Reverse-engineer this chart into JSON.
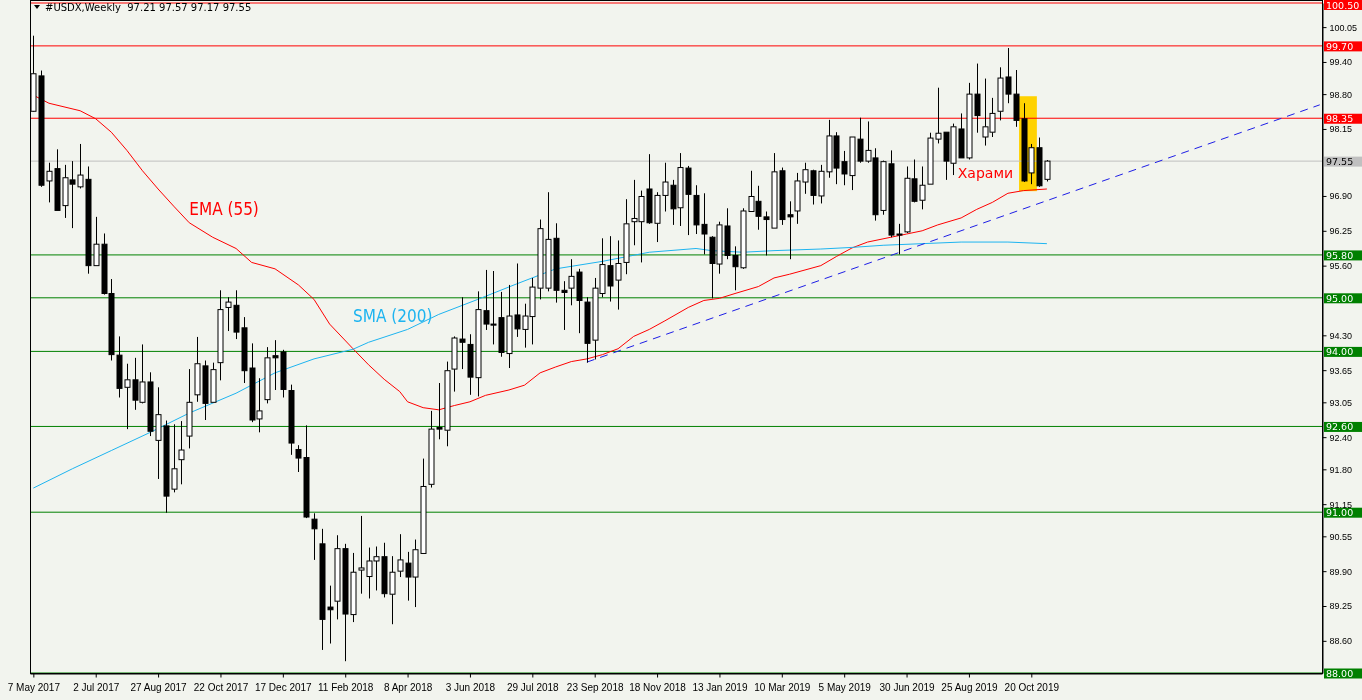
{
  "chart_data": {
    "type": "candlestick",
    "title": "#USDX,Weekly  97.21 97.57 97.17 97.55",
    "x": [
      "2017-05-07",
      "2017-05-14",
      "2017-05-21",
      "2017-05-28",
      "2017-06-04",
      "2017-06-11",
      "2017-06-18",
      "2017-06-25",
      "2017-07-02",
      "2017-07-09",
      "2017-07-16",
      "2017-07-23",
      "2017-07-30",
      "2017-08-06",
      "2017-08-13",
      "2017-08-20",
      "2017-08-27",
      "2017-09-03",
      "2017-09-10",
      "2017-09-17",
      "2017-09-24",
      "2017-10-01",
      "2017-10-08",
      "2017-10-15",
      "2017-10-22",
      "2017-10-29",
      "2017-11-05",
      "2017-11-12",
      "2017-11-19",
      "2017-11-26",
      "2017-12-03",
      "2017-12-10",
      "2017-12-17",
      "2017-12-24",
      "2017-12-31",
      "2018-01-07",
      "2018-01-14",
      "2018-01-21",
      "2018-01-28",
      "2018-02-04",
      "2018-02-11",
      "2018-02-18",
      "2018-02-25",
      "2018-03-04",
      "2018-03-11",
      "2018-03-18",
      "2018-03-25",
      "2018-04-01",
      "2018-04-08",
      "2018-04-15",
      "2018-04-22",
      "2018-04-29",
      "2018-05-06",
      "2018-05-13",
      "2018-05-20",
      "2018-05-27",
      "2018-06-03",
      "2018-06-10",
      "2018-06-17",
      "2018-06-24",
      "2018-07-01",
      "2018-07-08",
      "2018-07-15",
      "2018-07-22",
      "2018-07-29",
      "2018-08-05",
      "2018-08-12",
      "2018-08-19",
      "2018-08-26",
      "2018-09-02",
      "2018-09-09",
      "2018-09-16",
      "2018-09-23",
      "2018-09-30",
      "2018-10-07",
      "2018-10-14",
      "2018-10-21",
      "2018-10-28",
      "2018-11-04",
      "2018-11-11",
      "2018-11-18",
      "2018-11-25",
      "2018-12-02",
      "2018-12-09",
      "2018-12-16",
      "2018-12-23",
      "2018-12-30",
      "2019-01-06",
      "2019-01-13",
      "2019-01-20",
      "2019-01-27",
      "2019-02-03",
      "2019-02-10",
      "2019-02-17",
      "2019-02-24",
      "2019-03-03",
      "2019-03-10",
      "2019-03-17",
      "2019-03-24",
      "2019-03-31",
      "2019-04-07",
      "2019-04-14",
      "2019-04-21",
      "2019-04-28",
      "2019-05-05",
      "2019-05-12",
      "2019-05-19",
      "2019-05-26",
      "2019-06-02",
      "2019-06-09",
      "2019-06-16",
      "2019-06-23",
      "2019-06-30",
      "2019-07-07",
      "2019-07-14",
      "2019-07-21",
      "2019-07-28",
      "2019-08-04",
      "2019-08-11",
      "2019-08-18",
      "2019-08-25",
      "2019-09-01",
      "2019-09-08",
      "2019-09-15",
      "2019-09-22",
      "2019-09-29",
      "2019-10-06",
      "2019-10-13",
      "2019-10-20",
      "2019-10-27",
      "2019-11-03"
    ],
    "ohlc": [
      [
        98.48,
        99.89,
        98.47,
        99.18
      ],
      [
        99.14,
        99.24,
        97.07,
        97.1
      ],
      [
        97.18,
        97.52,
        96.78,
        97.36
      ],
      [
        97.41,
        97.77,
        96.63,
        96.63
      ],
      [
        96.72,
        97.48,
        96.49,
        97.24
      ],
      [
        97.2,
        97.55,
        96.3,
        97.12
      ],
      [
        97.07,
        97.87,
        97.04,
        97.29
      ],
      [
        97.21,
        97.45,
        95.45,
        95.6
      ],
      [
        95.6,
        96.51,
        95.6,
        96.0
      ],
      [
        96.0,
        96.2,
        95.06,
        95.08
      ],
      [
        95.08,
        95.35,
        93.83,
        93.94
      ],
      [
        93.93,
        94.28,
        93.14,
        93.31
      ],
      [
        93.33,
        93.77,
        92.55,
        93.47
      ],
      [
        93.47,
        93.88,
        92.91,
        93.09
      ],
      [
        93.05,
        94.13,
        93.03,
        93.43
      ],
      [
        93.43,
        93.61,
        92.42,
        92.51
      ],
      [
        92.34,
        93.33,
        91.62,
        92.82
      ],
      [
        92.61,
        92.71,
        90.99,
        91.3
      ],
      [
        91.43,
        92.64,
        91.37,
        91.81
      ],
      [
        91.98,
        92.7,
        91.52,
        92.16
      ],
      [
        92.42,
        93.67,
        92.19,
        93.05
      ],
      [
        93.19,
        94.27,
        93.06,
        93.77
      ],
      [
        93.73,
        93.83,
        92.72,
        93.03
      ],
      [
        93.05,
        93.79,
        93.05,
        93.66
      ],
      [
        93.79,
        95.14,
        93.46,
        94.78
      ],
      [
        94.82,
        95.01,
        94.38,
        94.92
      ],
      [
        94.86,
        95.14,
        94.23,
        94.36
      ],
      [
        94.44,
        94.64,
        93.41,
        93.64
      ],
      [
        93.69,
        94.15,
        92.68,
        92.72
      ],
      [
        92.74,
        93.5,
        92.49,
        92.89
      ],
      [
        93.1,
        94.08,
        93.03,
        93.88
      ],
      [
        93.92,
        94.21,
        93.28,
        93.88
      ],
      [
        93.99,
        94.03,
        93.14,
        93.29
      ],
      [
        93.27,
        93.38,
        92.07,
        92.29
      ],
      [
        92.17,
        92.25,
        91.75,
        92.01
      ],
      [
        92.02,
        92.62,
        90.89,
        90.91
      ],
      [
        90.87,
        90.98,
        90.11,
        90.69
      ],
      [
        90.41,
        90.69,
        88.43,
        89.0
      ],
      [
        89.23,
        89.63,
        88.55,
        89.18
      ],
      [
        89.34,
        90.57,
        89.0,
        90.32
      ],
      [
        90.32,
        90.41,
        88.22,
        89.1
      ],
      [
        89.09,
        90.24,
        88.95,
        89.88
      ],
      [
        89.92,
        90.93,
        89.48,
        89.96
      ],
      [
        89.8,
        90.34,
        89.39,
        90.09
      ],
      [
        90.09,
        90.36,
        89.54,
        90.17
      ],
      [
        90.17,
        90.43,
        89.41,
        89.48
      ],
      [
        89.47,
        90.18,
        88.91,
        89.88
      ],
      [
        89.9,
        90.59,
        89.79,
        90.11
      ],
      [
        90.05,
        90.26,
        89.35,
        89.79
      ],
      [
        89.79,
        90.49,
        89.23,
        90.3
      ],
      [
        90.23,
        92.0,
        90.23,
        91.48
      ],
      [
        91.52,
        92.89,
        91.46,
        92.55
      ],
      [
        92.58,
        93.41,
        92.36,
        92.55
      ],
      [
        92.53,
        93.81,
        92.23,
        93.64
      ],
      [
        93.67,
        94.28,
        93.25,
        94.25
      ],
      [
        94.23,
        95.01,
        93.67,
        94.17
      ],
      [
        94.13,
        94.32,
        93.19,
        93.52
      ],
      [
        93.51,
        95.12,
        93.16,
        94.78
      ],
      [
        94.76,
        95.52,
        94.4,
        94.51
      ],
      [
        94.51,
        95.5,
        94.13,
        94.49
      ],
      [
        94.63,
        95.11,
        93.9,
        93.98
      ],
      [
        93.96,
        95.24,
        93.69,
        94.66
      ],
      [
        94.68,
        95.64,
        94.27,
        94.42
      ],
      [
        94.41,
        94.89,
        94.07,
        94.66
      ],
      [
        94.65,
        95.37,
        94.13,
        95.2
      ],
      [
        95.18,
        96.46,
        94.97,
        96.29
      ],
      [
        95.18,
        96.97,
        95.12,
        96.09
      ],
      [
        96.11,
        96.39,
        94.91,
        95.14
      ],
      [
        95.14,
        95.31,
        94.4,
        95.1
      ],
      [
        95.18,
        95.72,
        94.86,
        95.4
      ],
      [
        95.48,
        95.54,
        94.34,
        94.95
      ],
      [
        94.92,
        95.01,
        93.79,
        94.15
      ],
      [
        94.21,
        95.37,
        93.85,
        95.18
      ],
      [
        95.08,
        96.11,
        95.01,
        95.62
      ],
      [
        95.6,
        96.15,
        94.93,
        95.22
      ],
      [
        95.33,
        96.07,
        94.78,
        95.64
      ],
      [
        95.66,
        96.84,
        95.44,
        96.38
      ],
      [
        96.42,
        97.2,
        95.98,
        96.48
      ],
      [
        96.42,
        97.0,
        95.66,
        96.89
      ],
      [
        97.03,
        97.68,
        96.38,
        96.4
      ],
      [
        96.39,
        96.97,
        96.04,
        96.91
      ],
      [
        96.91,
        97.52,
        96.61,
        97.16
      ],
      [
        97.1,
        97.2,
        96.36,
        96.66
      ],
      [
        96.68,
        97.7,
        96.34,
        97.43
      ],
      [
        97.42,
        97.46,
        96.17,
        96.93
      ],
      [
        96.91,
        97.1,
        96.19,
        96.36
      ],
      [
        96.37,
        96.95,
        95.81,
        96.19
      ],
      [
        96.13,
        96.15,
        94.99,
        95.64
      ],
      [
        95.63,
        96.42,
        95.45,
        96.36
      ],
      [
        96.34,
        96.67,
        95.72,
        95.79
      ],
      [
        95.79,
        95.96,
        95.14,
        95.58
      ],
      [
        95.56,
        96.67,
        95.54,
        96.62
      ],
      [
        96.61,
        97.37,
        96.61,
        96.89
      ],
      [
        96.8,
        97.09,
        96.27,
        96.52
      ],
      [
        96.51,
        96.61,
        95.79,
        96.46
      ],
      [
        96.3,
        97.7,
        96.3,
        97.35
      ],
      [
        97.37,
        97.43,
        96.36,
        96.46
      ],
      [
        96.55,
        96.8,
        95.72,
        96.51
      ],
      [
        96.62,
        97.33,
        96.38,
        97.18
      ],
      [
        97.16,
        97.52,
        96.94,
        97.39
      ],
      [
        97.37,
        97.39,
        96.74,
        96.91
      ],
      [
        96.9,
        97.48,
        96.76,
        97.36
      ],
      [
        97.35,
        98.32,
        97.24,
        98.02
      ],
      [
        98.02,
        98.09,
        97.12,
        97.42
      ],
      [
        97.54,
        97.74,
        97.1,
        97.31
      ],
      [
        97.28,
        98.0,
        97.01,
        98.0
      ],
      [
        97.96,
        98.36,
        97.52,
        97.55
      ],
      [
        97.55,
        98.29,
        97.52,
        97.75
      ],
      [
        97.61,
        97.79,
        96.44,
        96.55
      ],
      [
        96.63,
        97.56,
        96.55,
        97.54
      ],
      [
        97.5,
        97.75,
        96.13,
        96.17
      ],
      [
        96.19,
        96.38,
        95.81,
        96.17
      ],
      [
        96.23,
        97.45,
        96.21,
        97.23
      ],
      [
        97.22,
        97.58,
        96.78,
        96.8
      ],
      [
        96.82,
        97.45,
        96.65,
        97.1
      ],
      [
        97.12,
        98.08,
        97.12,
        97.98
      ],
      [
        97.96,
        98.92,
        97.88,
        98.07
      ],
      [
        98.09,
        98.09,
        97.2,
        97.55
      ],
      [
        97.51,
        98.25,
        97.29,
        98.19
      ],
      [
        98.15,
        98.44,
        97.61,
        97.61
      ],
      [
        97.61,
        99.01,
        97.58,
        98.8
      ],
      [
        98.8,
        99.37,
        98.08,
        98.4
      ],
      [
        98.0,
        99.09,
        97.84,
        98.19
      ],
      [
        98.09,
        98.73,
        98.0,
        98.44
      ],
      [
        98.48,
        99.3,
        98.31,
        99.1
      ],
      [
        99.12,
        99.66,
        98.63,
        98.8
      ],
      [
        98.8,
        99.25,
        98.19,
        98.31
      ],
      [
        98.34,
        98.63,
        97.16,
        97.18
      ],
      [
        97.33,
        97.87,
        97.12,
        97.8
      ],
      [
        97.8,
        97.99,
        97.07,
        97.09
      ],
      [
        97.21,
        97.57,
        97.17,
        97.55
      ]
    ],
    "series": [
      {
        "name": "EMA (55)",
        "type": "line",
        "color": "#ff0000",
        "x": [
          "2017-05-07",
          "2017-05-21",
          "2017-06-18",
          "2017-07-02",
          "2017-07-16",
          "2017-07-30",
          "2017-08-13",
          "2017-08-27",
          "2017-09-10",
          "2017-09-24",
          "2017-10-15",
          "2017-11-05",
          "2017-11-19",
          "2017-12-10",
          "2017-12-31",
          "2018-01-14",
          "2018-01-28",
          "2018-02-18",
          "2018-03-04",
          "2018-03-18",
          "2018-04-01",
          "2018-04-08",
          "2018-04-22",
          "2018-05-06",
          "2018-05-20",
          "2018-06-03",
          "2018-06-17",
          "2018-07-08",
          "2018-07-22",
          "2018-08-05",
          "2018-08-19",
          "2018-09-02",
          "2018-09-16",
          "2018-09-30",
          "2018-10-14",
          "2018-10-28",
          "2018-11-11",
          "2018-11-25",
          "2018-12-16",
          "2018-12-30",
          "2019-01-13",
          "2019-01-27",
          "2019-02-17",
          "2019-03-03",
          "2019-03-17",
          "2019-04-14",
          "2019-04-28",
          "2019-05-12",
          "2019-05-26",
          "2019-06-16",
          "2019-06-30",
          "2019-07-14",
          "2019-07-28",
          "2019-08-18",
          "2019-09-01",
          "2019-09-15",
          "2019-09-29",
          "2019-10-13",
          "2019-11-03"
        ],
        "values": [
          98.78,
          98.63,
          98.49,
          98.34,
          98.09,
          97.75,
          97.37,
          97.03,
          96.71,
          96.4,
          96.13,
          95.92,
          95.66,
          95.54,
          95.24,
          94.97,
          94.51,
          94.05,
          93.75,
          93.48,
          93.25,
          93.06,
          92.95,
          92.91,
          92.99,
          93.06,
          93.18,
          93.28,
          93.37,
          93.6,
          93.71,
          93.81,
          93.86,
          93.94,
          94.05,
          94.28,
          94.41,
          94.57,
          94.82,
          94.95,
          94.99,
          95.08,
          95.21,
          95.37,
          95.44,
          95.6,
          95.77,
          95.93,
          96.04,
          96.13,
          96.19,
          96.25,
          96.36,
          96.49,
          96.65,
          96.78,
          96.95,
          97.0,
          97.03
        ]
      },
      {
        "name": "SMA (200)",
        "type": "line",
        "color": "#1eb4f0",
        "x": [
          "2017-05-07",
          "2017-06-11",
          "2017-07-16",
          "2017-08-20",
          "2017-09-24",
          "2017-11-05",
          "2017-12-10",
          "2018-01-14",
          "2018-02-18",
          "2018-03-04",
          "2018-04-08",
          "2018-05-06",
          "2018-06-10",
          "2018-07-15",
          "2018-08-19",
          "2018-09-30",
          "2018-11-11",
          "2018-12-23",
          "2019-01-06",
          "2019-02-03",
          "2019-03-03",
          "2019-04-14",
          "2019-05-12",
          "2019-06-09",
          "2019-08-18",
          "2019-09-29",
          "2019-11-03"
        ],
        "values": [
          91.45,
          91.81,
          92.15,
          92.49,
          92.85,
          93.22,
          93.6,
          93.86,
          94.04,
          94.17,
          94.41,
          94.69,
          94.97,
          95.26,
          95.54,
          95.68,
          95.85,
          95.92,
          95.88,
          95.85,
          95.88,
          95.91,
          95.94,
          95.98,
          96.04,
          96.04,
          96.01
        ]
      },
      {
        "type": "line",
        "color": "#1e1ee6",
        "line_style": "dashed",
        "x": [
          "2018-09-16",
          "2020-07-05"
        ],
        "values": [
          93.8,
          98.6
        ]
      }
    ],
    "xlim": [
      "2017-05-04",
      "2020-07-07"
    ],
    "ylim": [
      88.0,
      100.5
    ],
    "xticks": [
      {
        "value": "2017-05-07",
        "label": "7 May 2017"
      },
      {
        "value": "2017-07-02",
        "label": "2 Jul 2017"
      },
      {
        "value": "2017-08-27",
        "label": "27 Aug 2017"
      },
      {
        "value": "2017-10-22",
        "label": "22 Oct 2017"
      },
      {
        "value": "2017-12-17",
        "label": "17 Dec 2017"
      },
      {
        "value": "2018-02-11",
        "label": "11 Feb 2018"
      },
      {
        "value": "2018-04-08",
        "label": "8 Apr 2018"
      },
      {
        "value": "2018-06-03",
        "label": "3 Jun 2018"
      },
      {
        "value": "2018-07-29",
        "label": "29 Jul 2018"
      },
      {
        "value": "2018-09-23",
        "label": "23 Sep 2018"
      },
      {
        "value": "2018-11-18",
        "label": "18 Nov 2018"
      },
      {
        "value": "2019-01-13",
        "label": "13 Jan 2019"
      },
      {
        "value": "2019-03-10",
        "label": "10 Mar 2019"
      },
      {
        "value": "2019-05-05",
        "label": "5 May 2019"
      },
      {
        "value": "2019-06-30",
        "label": "30 Jun 2019"
      },
      {
        "value": "2019-08-25",
        "label": "25 Aug 2019"
      },
      {
        "value": "2019-10-20",
        "label": "20 Oct 2019"
      }
    ],
    "yticks": [
      {
        "value": 100.05,
        "label": "100.05"
      },
      {
        "value": 99.4,
        "label": "99.40"
      },
      {
        "value": 98.8,
        "label": "98.80"
      },
      {
        "value": 98.15,
        "label": "98.15"
      },
      {
        "value": 96.9,
        "label": "96.90"
      },
      {
        "value": 96.25,
        "label": "96.25"
      },
      {
        "value": 95.6,
        "label": "95.60"
      },
      {
        "value": 94.3,
        "label": "94.30"
      },
      {
        "value": 93.65,
        "label": "93.65"
      },
      {
        "value": 93.05,
        "label": "93.05"
      },
      {
        "value": 92.4,
        "label": "92.40"
      },
      {
        "value": 91.8,
        "label": "91.80"
      },
      {
        "value": 91.15,
        "label": "91.15"
      },
      {
        "value": 90.55,
        "label": "90.55"
      },
      {
        "value": 89.9,
        "label": "89.90"
      },
      {
        "value": 89.25,
        "label": "89.25"
      },
      {
        "value": 88.6,
        "label": "88.60"
      }
    ],
    "ref_lines": [
      {
        "axis": "y",
        "value": 100.5,
        "label": "100.50",
        "color": "#ff0000"
      },
      {
        "axis": "y",
        "value": 99.7,
        "label": "99.70",
        "color": "#ff0000"
      },
      {
        "axis": "y",
        "value": 98.35,
        "label": "98.35",
        "color": "#ff0000"
      },
      {
        "axis": "y",
        "value": 97.55,
        "label": "97.55",
        "color": "#c0c0c0"
      },
      {
        "axis": "y",
        "value": 95.8,
        "label": "95.80",
        "color": "#008000"
      },
      {
        "axis": "y",
        "value": 95.0,
        "label": "95.00",
        "color": "#008000"
      },
      {
        "axis": "y",
        "value": 94.0,
        "label": "94.00",
        "color": "#008000"
      },
      {
        "axis": "y",
        "value": 92.6,
        "label": "92.60",
        "color": "#008000"
      },
      {
        "axis": "y",
        "value": 91.0,
        "label": "91.00",
        "color": "#008000"
      },
      {
        "axis": "y",
        "value": 88.0,
        "label": "88.00",
        "color": "#008000"
      }
    ],
    "bands": [
      {
        "axis": "x",
        "from": "2019-10-09",
        "to": "2019-10-25",
        "color": "#ffd200"
      }
    ],
    "annotations": [
      "Харами"
    ]
  }
}
